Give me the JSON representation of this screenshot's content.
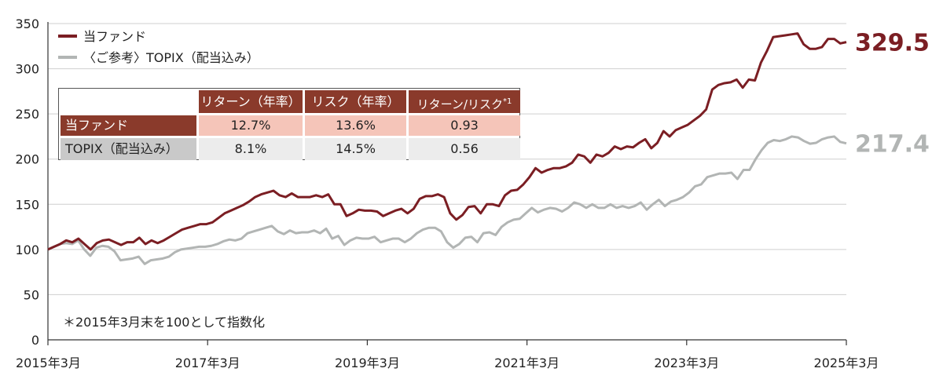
{
  "chart_data": {
    "type": "line",
    "x_start": "2015-03",
    "x_end": "2025-03",
    "x_ticks": [
      "2015年3月",
      "2017年3月",
      "2019年3月",
      "2021年3月",
      "2023年3月",
      "2025年3月"
    ],
    "y_ticks": [
      "0",
      "50",
      "100",
      "150",
      "200",
      "250",
      "300",
      "350"
    ],
    "ylim": [
      0,
      350
    ],
    "grid": true,
    "legend_position": "top-left",
    "note": "＊2015年3月末を100として指数化",
    "series": [
      {
        "name": "当ファンド",
        "color": "#7b1e23",
        "end_label": "329.5",
        "values": [
          100,
          103,
          106,
          110,
          108,
          112,
          106,
          100,
          107,
          110,
          111,
          108,
          105,
          108,
          108,
          113,
          106,
          110,
          107,
          110,
          114,
          118,
          122,
          124,
          126,
          128,
          128,
          130,
          135,
          140,
          143,
          146,
          149,
          153,
          158,
          161,
          163,
          165,
          160,
          158,
          162,
          158,
          158,
          158,
          160,
          158,
          161,
          150,
          150,
          137,
          140,
          144,
          143,
          143,
          142,
          137,
          140,
          143,
          145,
          140,
          145,
          156,
          159,
          159,
          161,
          158,
          140,
          133,
          138,
          147,
          148,
          140,
          150,
          150,
          148,
          160,
          165,
          166,
          172,
          180,
          190,
          185,
          188,
          190,
          190,
          192,
          196,
          205,
          203,
          196,
          205,
          203,
          207,
          214,
          211,
          214,
          213,
          218,
          222,
          212,
          218,
          231,
          225,
          232,
          235,
          238,
          243,
          248,
          255,
          277,
          282,
          284,
          285,
          288,
          279,
          288,
          287,
          307,
          320,
          335,
          336,
          337,
          338,
          339,
          327,
          322,
          322,
          324,
          333,
          333,
          328,
          329.5
        ]
      },
      {
        "name": "〈ご参考〉TOPIX（配当込み）",
        "color": "#b2b5b4",
        "end_label": "217.4",
        "values": [
          100,
          103,
          106,
          107,
          106,
          110,
          100,
          93,
          102,
          104,
          103,
          98,
          88,
          89,
          90,
          92,
          84,
          88,
          89,
          90,
          92,
          97,
          100,
          101,
          102,
          103,
          103,
          104,
          106,
          109,
          111,
          110,
          112,
          118,
          120,
          122,
          124,
          126,
          120,
          117,
          121,
          118,
          119,
          119,
          121,
          118,
          123,
          112,
          115,
          105,
          110,
          113,
          112,
          112,
          114,
          108,
          110,
          112,
          112,
          108,
          112,
          118,
          122,
          124,
          124,
          120,
          108,
          102,
          106,
          113,
          114,
          108,
          118,
          119,
          116,
          125,
          130,
          133,
          134,
          140,
          146,
          141,
          144,
          146,
          145,
          142,
          146,
          152,
          150,
          146,
          150,
          146,
          146,
          150,
          146,
          148,
          146,
          148,
          152,
          144,
          150,
          155,
          148,
          153,
          155,
          158,
          163,
          170,
          172,
          180,
          182,
          184,
          184,
          185,
          178,
          188,
          188,
          200,
          210,
          218,
          221,
          220,
          222,
          225,
          224,
          220,
          217,
          218,
          222,
          224,
          225,
          219,
          217.4
        ]
      }
    ]
  },
  "legend": {
    "fund_label": "当ファンド",
    "topix_label": "〈ご参考〉TOPIX（配当込み）"
  },
  "stats_table": {
    "headers": [
      "リターン（年率）",
      "リスク（年率）",
      "リターン/リスク"
    ],
    "header_footnote": "*1",
    "rows": [
      {
        "label": "当ファンド",
        "values": [
          "12.7%",
          "13.6%",
          "0.93"
        ]
      },
      {
        "label": "TOPIX（配当込み）",
        "values": [
          "8.1%",
          "14.5%",
          "0.56"
        ]
      }
    ],
    "colors": {
      "header_bg": "#8a3a2b",
      "fund_label_bg": "#8a3a2b",
      "fund_values_bg": "#f5c5b9",
      "topix_label_bg": "#c9c9c9",
      "topix_values_bg": "#ececec"
    }
  }
}
